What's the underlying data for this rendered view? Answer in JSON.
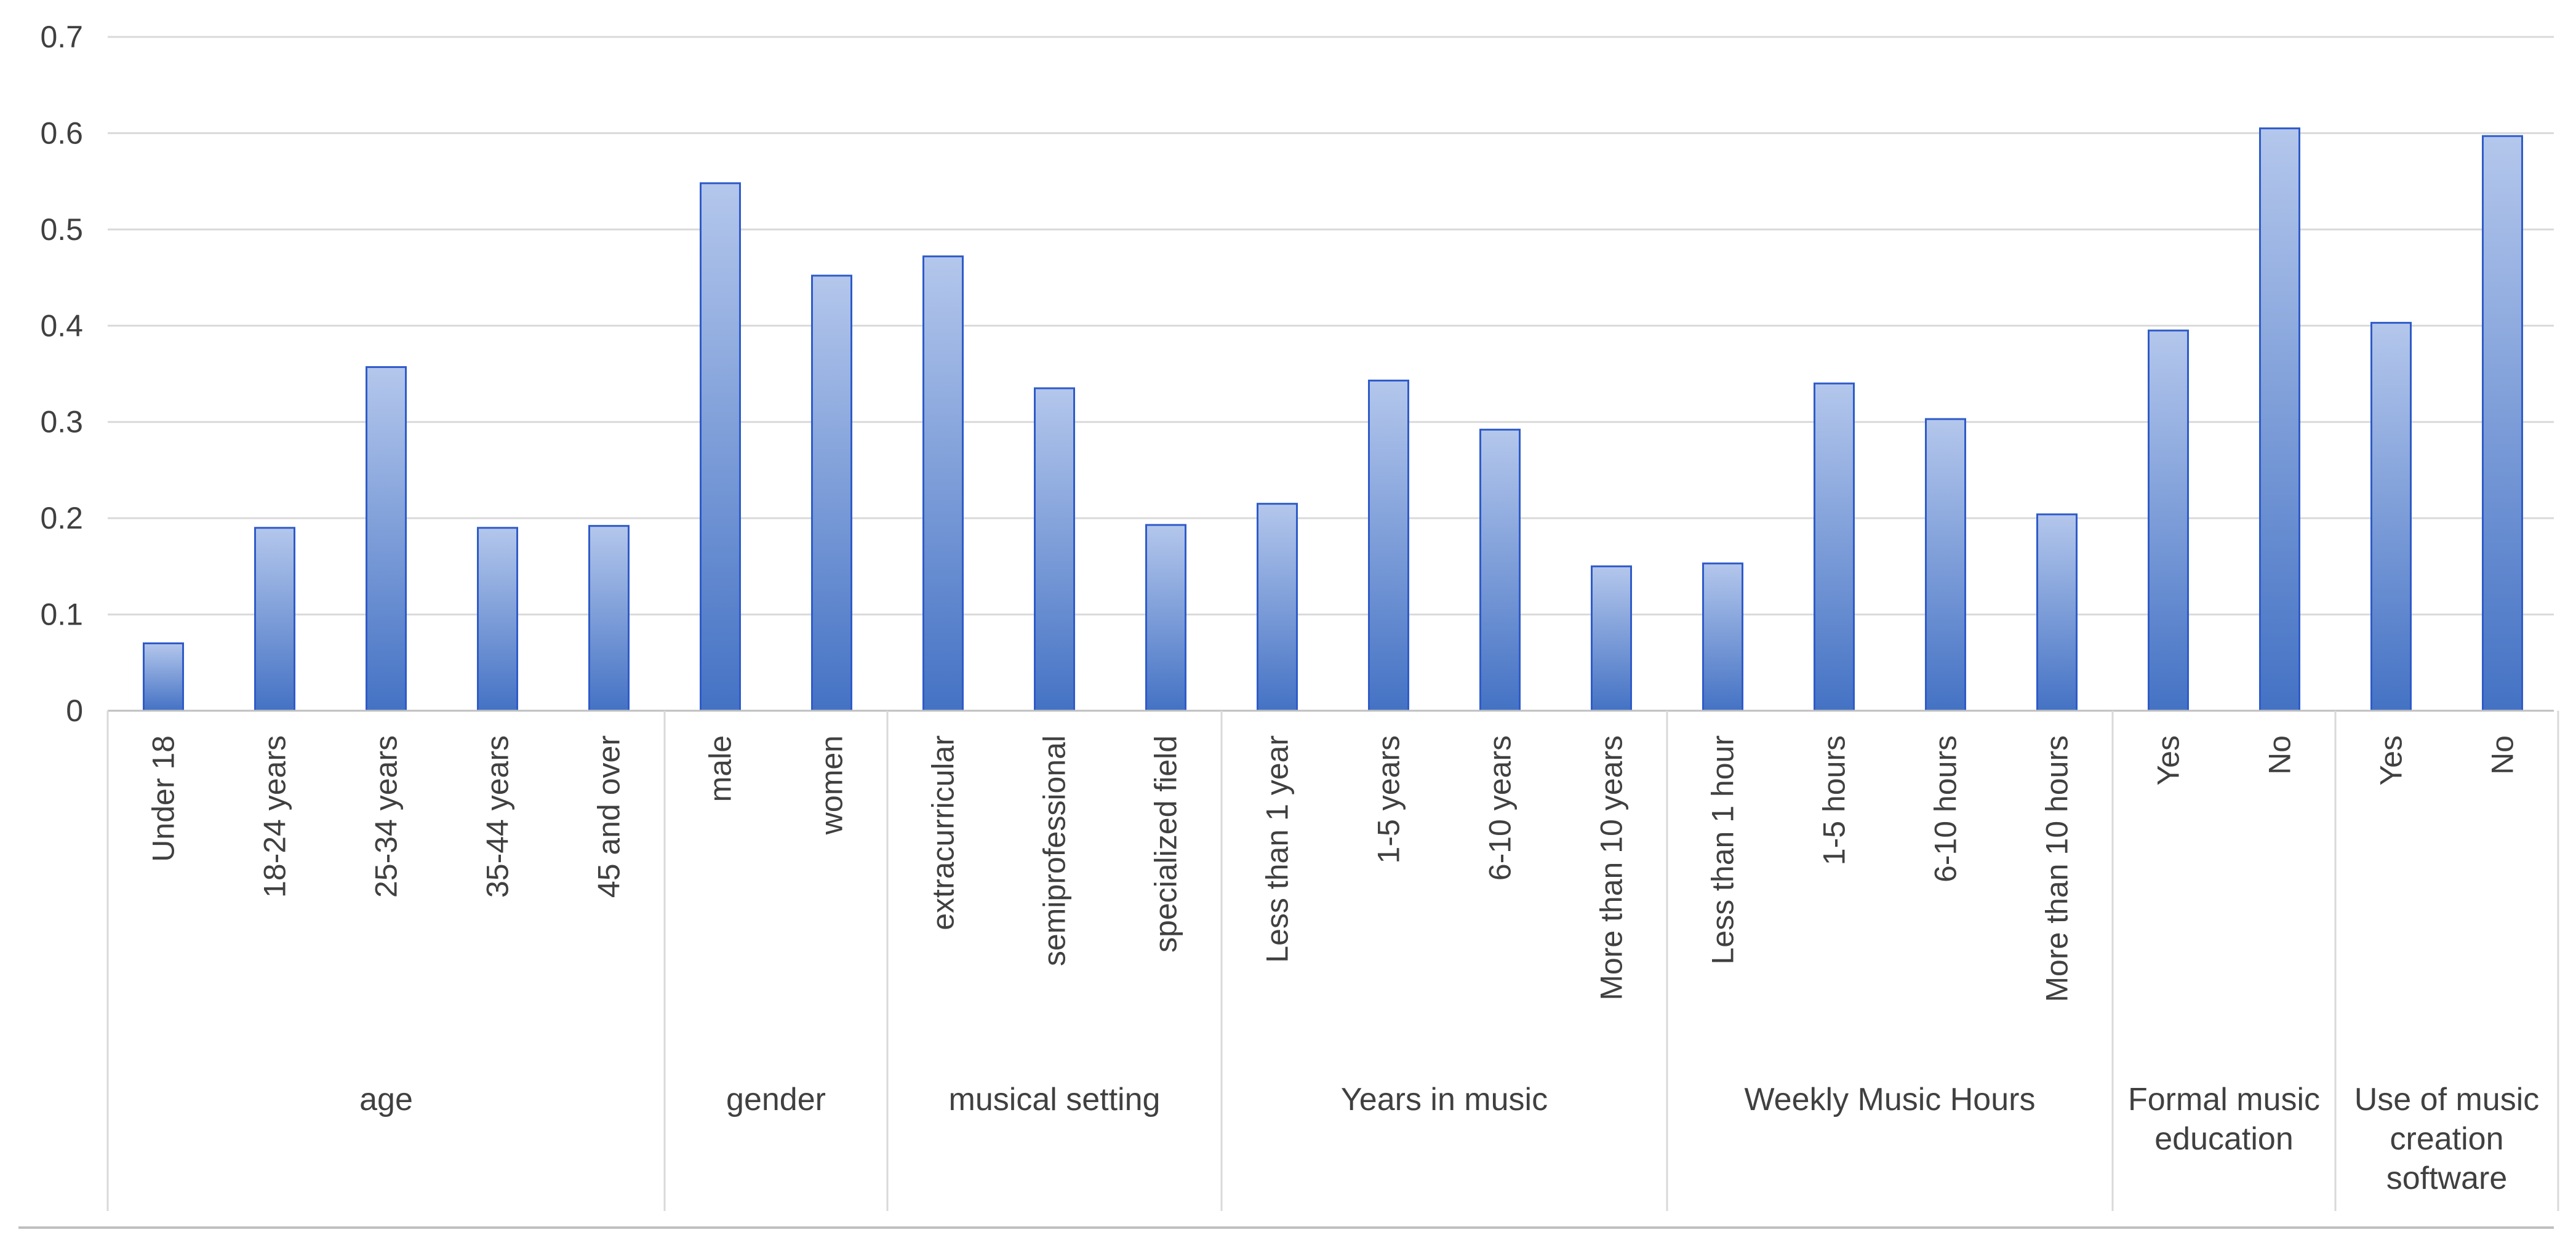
{
  "chart_data": {
    "type": "bar",
    "title": "",
    "xlabel": "",
    "ylabel": "",
    "ylim": [
      0,
      0.7
    ],
    "yticks": [
      "0",
      "0.1",
      "0.2",
      "0.3",
      "0.4",
      "0.5",
      "0.6",
      "0.7"
    ],
    "grid": true,
    "legend": "none",
    "bar_color_top": "#b4c7ec",
    "bar_color_bottom": "#4472c4",
    "bar_border_color": "#2f5bc8",
    "gridline_color": "#d9d9d9",
    "axis_line_color": "#bfbfbf",
    "groups": [
      {
        "name_lines": [
          "age"
        ],
        "categories": [
          "Under 18",
          "18-24 years",
          "25-34 years",
          "35-44 years",
          "45 and over"
        ],
        "values": [
          0.07,
          0.19,
          0.357,
          0.19,
          0.192
        ]
      },
      {
        "name_lines": [
          "gender"
        ],
        "categories": [
          "male",
          "women"
        ],
        "values": [
          0.548,
          0.452
        ]
      },
      {
        "name_lines": [
          "musical setting"
        ],
        "categories": [
          "extracurricular",
          "semiprofessional",
          "specialized field"
        ],
        "values": [
          0.472,
          0.335,
          0.193
        ]
      },
      {
        "name_lines": [
          "Years in music"
        ],
        "categories": [
          "Less than 1 year",
          "1-5 years",
          "6-10 years",
          "More than 10 years"
        ],
        "values": [
          0.215,
          0.343,
          0.292,
          0.15
        ]
      },
      {
        "name_lines": [
          "Weekly Music Hours"
        ],
        "categories": [
          "Less than 1 hour",
          "1-5 hours",
          "6-10 hours",
          "More than 10 hours"
        ],
        "values": [
          0.153,
          0.34,
          0.303,
          0.204
        ]
      },
      {
        "name_lines": [
          "Formal music",
          "education"
        ],
        "categories": [
          "Yes",
          "No"
        ],
        "values": [
          0.395,
          0.605
        ]
      },
      {
        "name_lines": [
          "Use of music",
          "creation",
          "software"
        ],
        "categories": [
          "Yes",
          "No"
        ],
        "values": [
          0.403,
          0.597
        ]
      }
    ]
  }
}
